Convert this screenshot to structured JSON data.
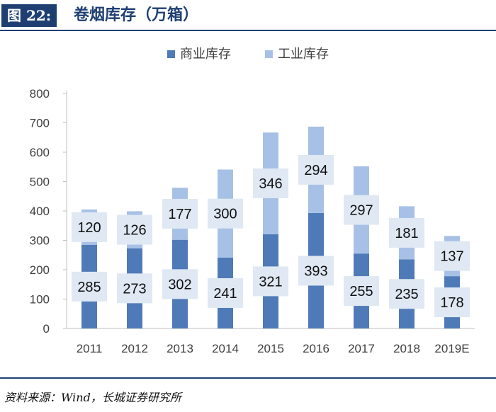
{
  "header": {
    "figure_label": "图 22:",
    "title": "卷烟库存（万箱）"
  },
  "source": "资料来源：Wind，长城证券研究所",
  "colors": {
    "brand": "#1f3f73",
    "commercial": "#4f7ab8",
    "industrial": "#a7c1e6",
    "label_box": "#dfe8f3"
  },
  "chart_data": {
    "type": "bar",
    "stacked": true,
    "categories": [
      "2011",
      "2012",
      "2013",
      "2014",
      "2015",
      "2016",
      "2017",
      "2018",
      "2019E"
    ],
    "series": [
      {
        "name": "商业库存",
        "values": [
          285,
          273,
          302,
          241,
          321,
          393,
          255,
          235,
          178
        ]
      },
      {
        "name": "工业库存",
        "values": [
          120,
          126,
          177,
          300,
          346,
          294,
          297,
          181,
          137
        ]
      }
    ],
    "ylim": [
      0,
      800
    ],
    "yticks": [
      0,
      100,
      200,
      300,
      400,
      500,
      600,
      700,
      800
    ],
    "legend_position": "top",
    "grid": false
  }
}
